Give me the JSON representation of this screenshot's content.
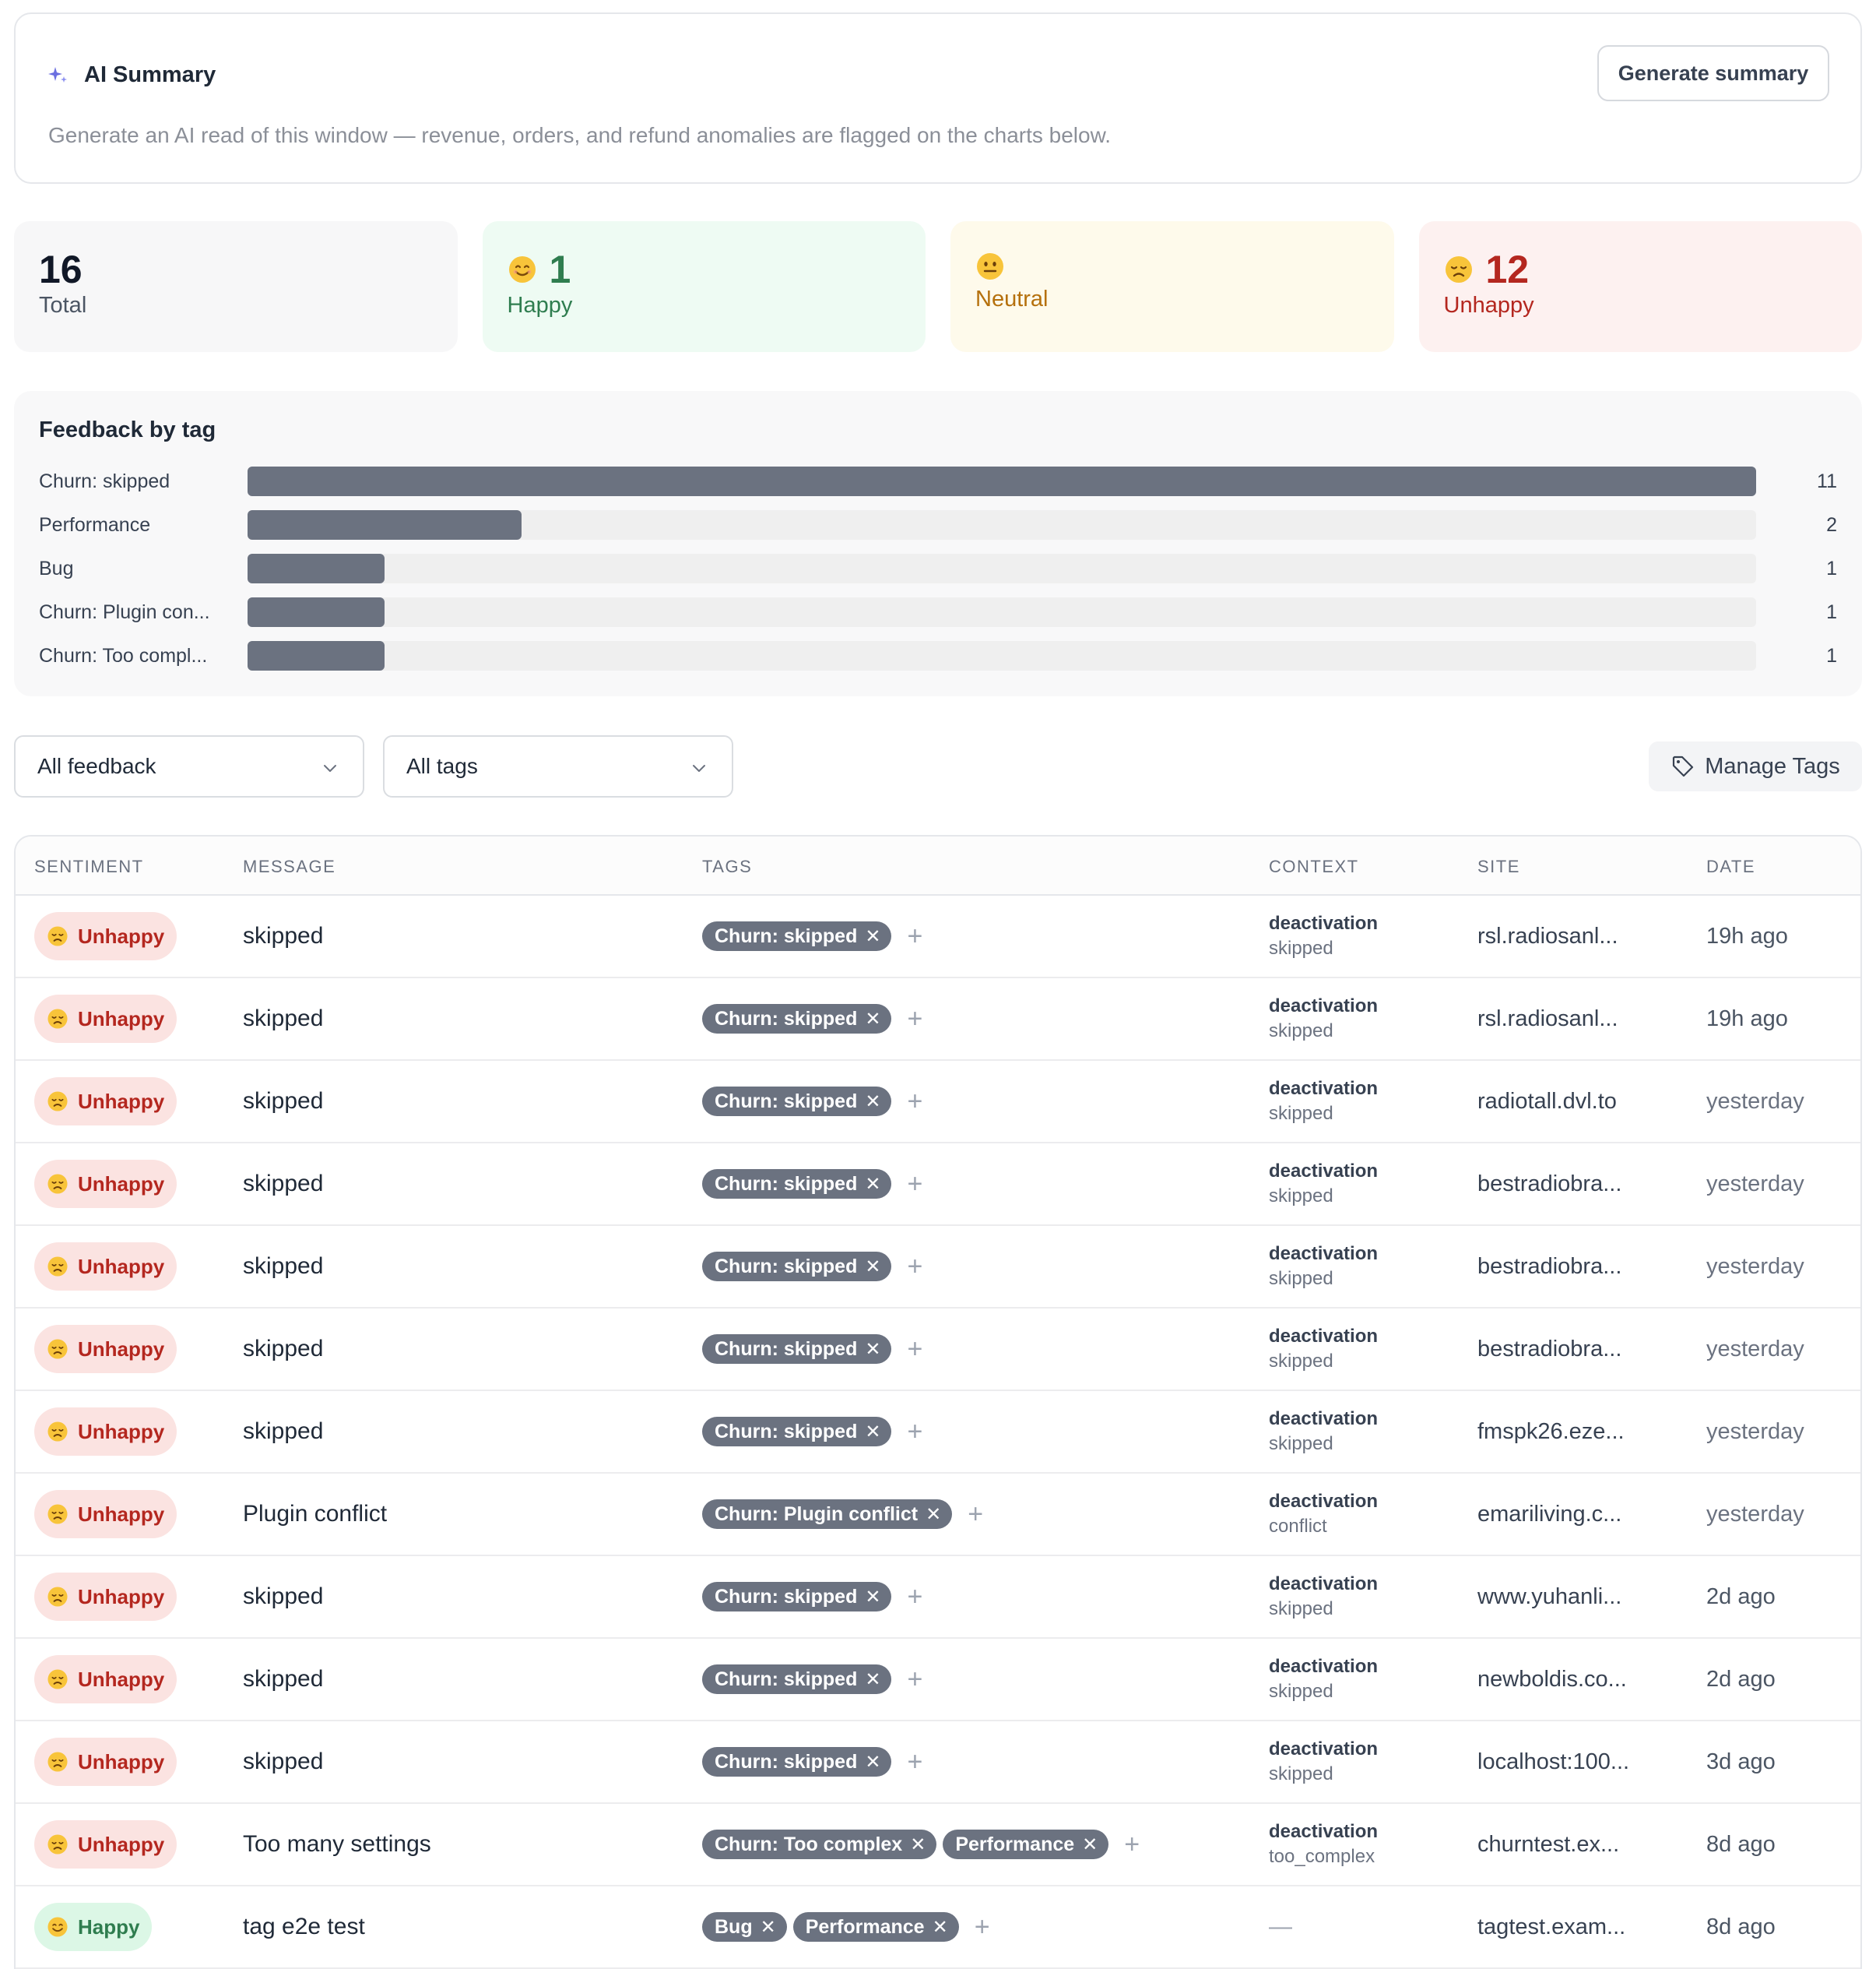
{
  "ai_summary": {
    "title": "AI Summary",
    "description": "Generate an AI read of this window — revenue, orders, and refund anomalies are flagged on the charts below.",
    "button_label": "Generate summary"
  },
  "stats": {
    "total": {
      "value": "16",
      "label": "Total"
    },
    "happy": {
      "value": "1",
      "label": "Happy"
    },
    "neutral": {
      "value": "",
      "label": "Neutral"
    },
    "unhappy": {
      "value": "12",
      "label": "Unhappy"
    }
  },
  "chart_data": {
    "type": "bar",
    "title": "Feedback by tag",
    "categories": [
      "Churn: skipped",
      "Performance",
      "Bug",
      "Churn: Plugin con...",
      "Churn: Too compl..."
    ],
    "values": [
      11,
      2,
      1,
      1,
      1
    ],
    "value_labels": [
      "11",
      "2",
      "1",
      "1",
      "1"
    ],
    "bar_color": "#6b7280",
    "track_color": "#efefef"
  },
  "filters": {
    "feedback_select": "All feedback",
    "tags_select": "All tags",
    "manage_tags_label": "Manage Tags"
  },
  "table": {
    "headers": {
      "sentiment": "SENTIMENT",
      "message": "MESSAGE",
      "tags": "TAGS",
      "context": "CONTEXT",
      "site": "SITE",
      "date": "DATE"
    },
    "rows": [
      {
        "sentiment": "Unhappy",
        "message": "skipped",
        "tags": [
          "Churn: skipped"
        ],
        "context": "deactivation",
        "context_sub": "skipped",
        "site": "rsl.radiosanl...",
        "date": "19h ago"
      },
      {
        "sentiment": "Unhappy",
        "message": "skipped",
        "tags": [
          "Churn: skipped"
        ],
        "context": "deactivation",
        "context_sub": "skipped",
        "site": "rsl.radiosanl...",
        "date": "19h ago"
      },
      {
        "sentiment": "Unhappy",
        "message": "skipped",
        "tags": [
          "Churn: skipped"
        ],
        "context": "deactivation",
        "context_sub": "skipped",
        "site": "radiotall.dvl.to",
        "date": "yesterday"
      },
      {
        "sentiment": "Unhappy",
        "message": "skipped",
        "tags": [
          "Churn: skipped"
        ],
        "context": "deactivation",
        "context_sub": "skipped",
        "site": "bestradiobra...",
        "date": "yesterday"
      },
      {
        "sentiment": "Unhappy",
        "message": "skipped",
        "tags": [
          "Churn: skipped"
        ],
        "context": "deactivation",
        "context_sub": "skipped",
        "site": "bestradiobra...",
        "date": "yesterday"
      },
      {
        "sentiment": "Unhappy",
        "message": "skipped",
        "tags": [
          "Churn: skipped"
        ],
        "context": "deactivation",
        "context_sub": "skipped",
        "site": "bestradiobra...",
        "date": "yesterday"
      },
      {
        "sentiment": "Unhappy",
        "message": "skipped",
        "tags": [
          "Churn: skipped"
        ],
        "context": "deactivation",
        "context_sub": "skipped",
        "site": "fmspk26.eze...",
        "date": "yesterday"
      },
      {
        "sentiment": "Unhappy",
        "message": "Plugin conflict",
        "tags": [
          "Churn: Plugin conflict"
        ],
        "context": "deactivation",
        "context_sub": "conflict",
        "site": "emariliving.c...",
        "date": "yesterday"
      },
      {
        "sentiment": "Unhappy",
        "message": "skipped",
        "tags": [
          "Churn: skipped"
        ],
        "context": "deactivation",
        "context_sub": "skipped",
        "site": "www.yuhanli...",
        "date": "2d ago"
      },
      {
        "sentiment": "Unhappy",
        "message": "skipped",
        "tags": [
          "Churn: skipped"
        ],
        "context": "deactivation",
        "context_sub": "skipped",
        "site": "newboldis.co...",
        "date": "2d ago"
      },
      {
        "sentiment": "Unhappy",
        "message": "skipped",
        "tags": [
          "Churn: skipped"
        ],
        "context": "deactivation",
        "context_sub": "skipped",
        "site": "localhost:100...",
        "date": "3d ago"
      },
      {
        "sentiment": "Unhappy",
        "message": "Too many settings",
        "tags": [
          "Churn: Too complex",
          "Performance"
        ],
        "context": "deactivation",
        "context_sub": "too_complex",
        "site": "churntest.ex...",
        "date": "8d ago"
      },
      {
        "sentiment": "Happy",
        "message": "tag e2e test",
        "tags": [
          "Bug",
          "Performance"
        ],
        "context": "",
        "context_sub": "",
        "context_empty": "—",
        "site": "tagtest.exam...",
        "date": "8d ago"
      }
    ]
  }
}
